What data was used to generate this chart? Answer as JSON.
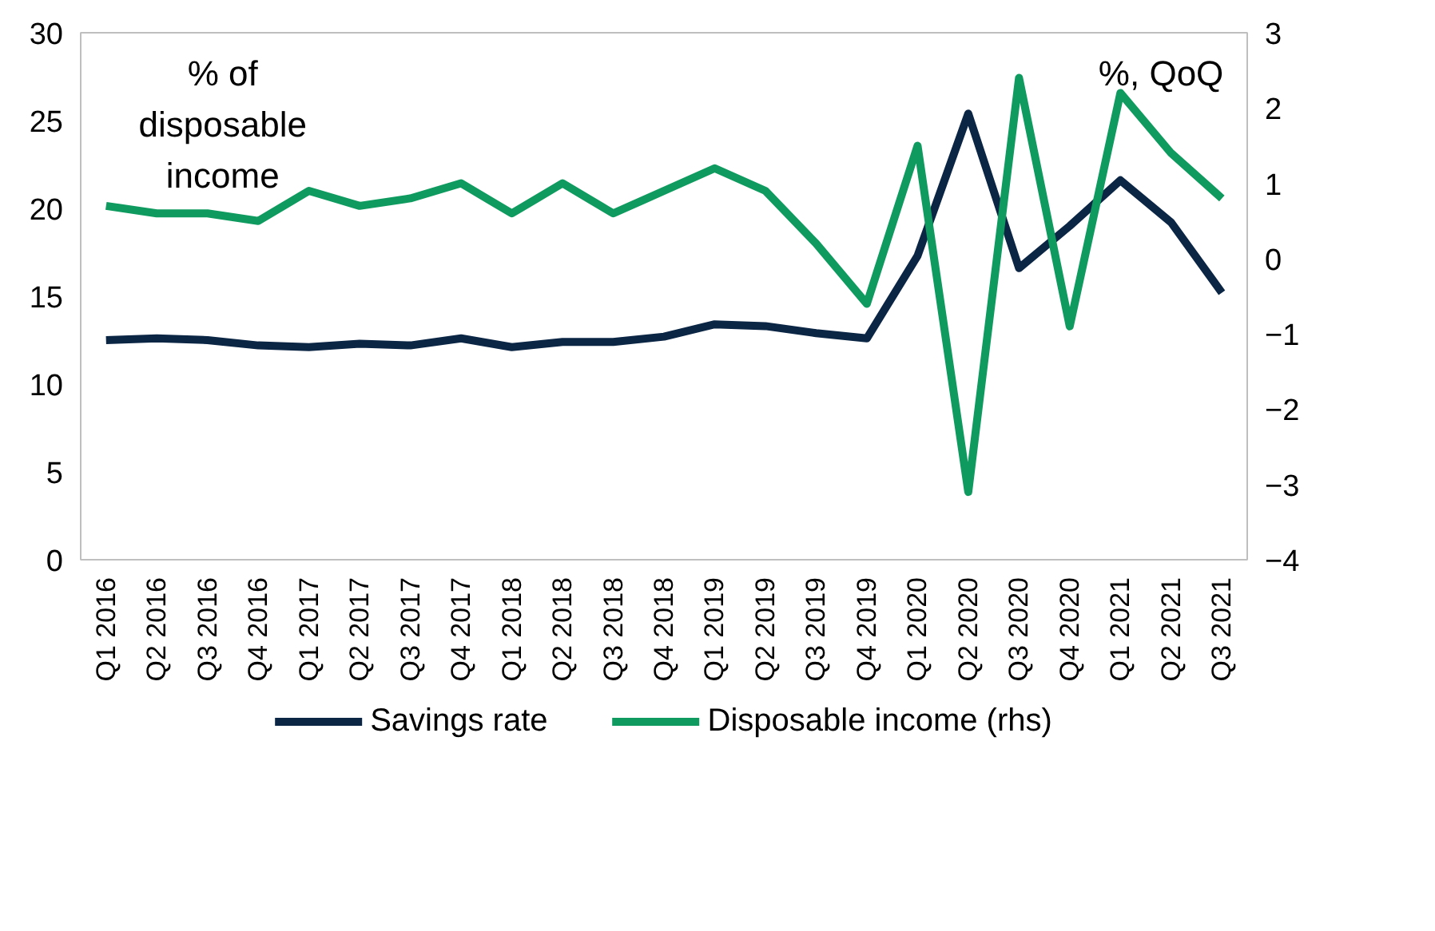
{
  "chart_data": {
    "type": "line",
    "categories": [
      "Q1 2016",
      "Q2 2016",
      "Q3 2016",
      "Q4 2016",
      "Q1 2017",
      "Q2 2017",
      "Q3 2017",
      "Q4 2017",
      "Q1 2018",
      "Q2 2018",
      "Q3 2018",
      "Q4 2018",
      "Q1 2019",
      "Q2 2019",
      "Q3 2019",
      "Q4 2019",
      "Q1 2020",
      "Q2 2020",
      "Q3 2020",
      "Q4 2020",
      "Q1 2021",
      "Q2 2021",
      "Q3 2021"
    ],
    "series": [
      {
        "name": "Savings rate",
        "color": "#0b2545",
        "values": [
          12.5,
          12.6,
          12.5,
          12.2,
          12.1,
          12.3,
          12.2,
          12.6,
          12.1,
          12.4,
          12.4,
          12.7,
          13.4,
          13.3,
          12.9,
          12.6,
          17.3,
          25.4,
          16.6,
          19.0,
          21.6,
          19.2,
          15.2
        ]
      },
      {
        "name": "Disposable income (rhs)",
        "color": "#0f9b5f",
        "axis": "y2",
        "values": [
          0.7,
          0.6,
          0.6,
          0.5,
          0.9,
          0.7,
          0.8,
          1.0,
          0.6,
          1.0,
          0.6,
          0.9,
          1.2,
          0.9,
          0.2,
          -0.6,
          1.5,
          -3.1,
          2.4,
          -0.9,
          2.2,
          1.4,
          0.8
        ]
      }
    ],
    "ylim": [
      0,
      30
    ],
    "yticks": [
      0,
      5,
      10,
      15,
      20,
      25,
      30
    ],
    "y2lim": [
      -4,
      3
    ],
    "y2ticks": [
      -4,
      -3,
      -2,
      -1,
      0,
      1,
      2,
      3
    ],
    "annotations": [
      "% of\ndisposable\nincome",
      "%, QoQ"
    ],
    "grid": false,
    "legend": "bottom",
    "line_style": "solid",
    "marker": "none"
  }
}
